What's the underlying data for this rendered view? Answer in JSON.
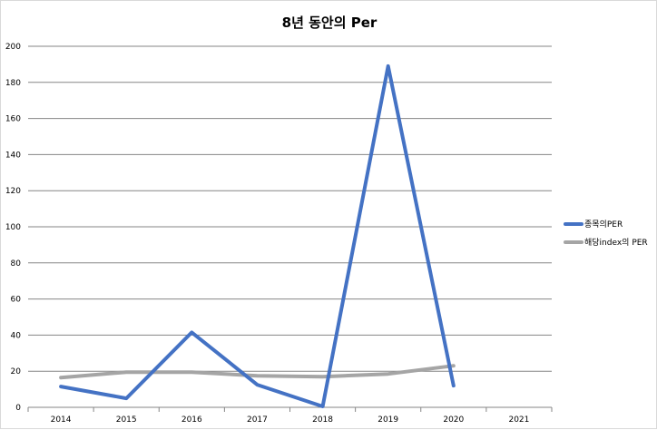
{
  "chart_data": {
    "type": "line",
    "title": "8년 동안의 Per",
    "xlabel": "",
    "ylabel": "",
    "categories": [
      "2014",
      "2015",
      "2016",
      "2017",
      "2018",
      "2019",
      "2020",
      "2021"
    ],
    "ylim": [
      0,
      200
    ],
    "yticks": [
      0,
      20,
      40,
      60,
      80,
      100,
      120,
      140,
      160,
      180,
      200
    ],
    "grid": true,
    "legend_position": "right",
    "series": [
      {
        "name": "종목의PER",
        "color": "#4472c4",
        "values": [
          11.5,
          5,
          41.5,
          12.5,
          0.5,
          189,
          12,
          null
        ]
      },
      {
        "name": "해당index의 PER",
        "color": "#a5a5a5",
        "values": [
          16.5,
          19.5,
          19.5,
          17.5,
          17,
          18.5,
          23,
          null
        ]
      }
    ]
  }
}
